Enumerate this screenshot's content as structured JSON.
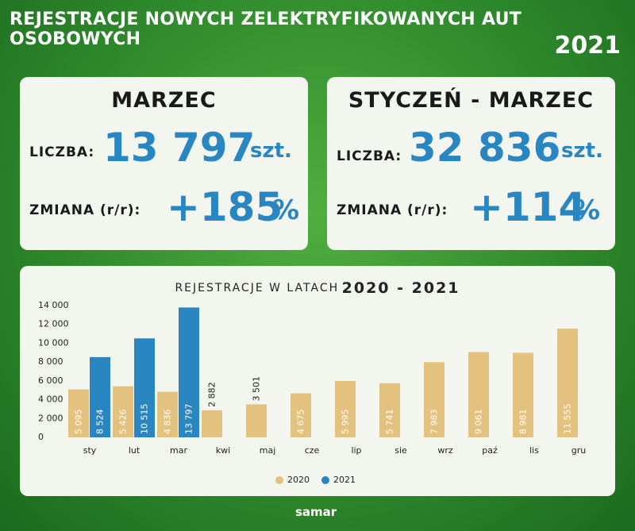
{
  "header": {
    "title": "REJESTRACJE NOWYCH ZELEKTRYFIKOWANYCH AUT OSOBOWYCH",
    "year": "2021"
  },
  "cards": [
    {
      "title": "MARZEC",
      "count_label": "LICZBA:",
      "count": "13 797",
      "unit": "szt.",
      "change_label": "ZMIANA (r/r):",
      "change": "+185",
      "change_unit": "%"
    },
    {
      "title": "STYCZEŃ - MARZEC",
      "count_label": "LICZBA:",
      "count": "32 836",
      "unit": "szt.",
      "change_label": "ZMIANA (r/r):",
      "change": "+114",
      "change_unit": "%"
    }
  ],
  "chart_data": {
    "type": "bar",
    "title": "REJESTRACJE W LATACH",
    "title_years": "2020 - 2021",
    "categories": [
      "sty",
      "lut",
      "mar",
      "kwi",
      "maj",
      "cze",
      "lip",
      "sie",
      "wrz",
      "paź",
      "lis",
      "gru"
    ],
    "series": [
      {
        "name": "2020",
        "color": "#e2c27e",
        "values": [
          5095,
          5426,
          4836,
          2882,
          3501,
          4675,
          5995,
          5741,
          7983,
          9061,
          8981,
          11555
        ],
        "value_labels": [
          "5 095",
          "5 426",
          "4 836",
          "2 882",
          "3 501",
          "4 675",
          "5 995",
          "5 741",
          "7 983",
          "9 061",
          "8 981",
          "11 555"
        ]
      },
      {
        "name": "2021",
        "color": "#2a86c1",
        "values": [
          8524,
          10515,
          13797,
          null,
          null,
          null,
          null,
          null,
          null,
          null,
          null,
          null
        ],
        "value_labels": [
          "8 524",
          "10 515",
          "13 797",
          null,
          null,
          null,
          null,
          null,
          null,
          null,
          null,
          null
        ]
      }
    ],
    "ylim": [
      0,
      14000
    ],
    "yticks": [
      0,
      {
        "value": 2000,
        "label": "2 000"
      },
      {
        "value": 4000,
        "label": "4 000"
      },
      {
        "value": 6000,
        "label": "6 000"
      },
      {
        "value": 8000,
        "label": "8 000"
      },
      {
        "value": 10000,
        "label": "10 000"
      },
      {
        "value": 12000,
        "label": "12 000"
      },
      {
        "value": 14000,
        "label": "14 000"
      }
    ],
    "legend": "bottom"
  },
  "logo": "samar"
}
